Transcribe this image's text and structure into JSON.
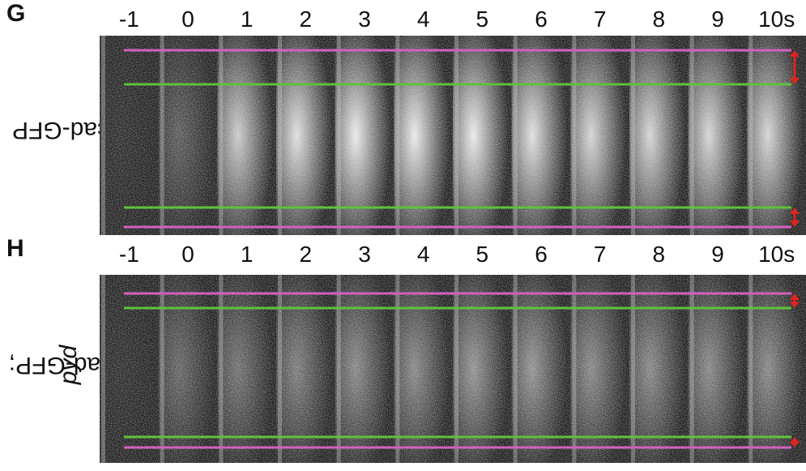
{
  "panels": [
    {
      "letter": "G",
      "ylabel": "Ecad-GFP",
      "ylabel_italic": "",
      "times": [
        "-1",
        "0",
        "1",
        "2",
        "3",
        "4",
        "5",
        "6",
        "7",
        "8",
        "9",
        "10s"
      ],
      "blob_intensity": [
        0.05,
        0.25,
        0.75,
        0.85,
        0.9,
        0.9,
        0.9,
        0.85,
        0.8,
        0.8,
        0.8,
        0.8
      ]
    },
    {
      "letter": "H",
      "ylabel": "Ecad-GFP; ",
      "ylabel_italic": "pyd",
      "times": [
        "-1",
        "0",
        "1",
        "2",
        "3",
        "4",
        "5",
        "6",
        "7",
        "8",
        "9",
        "10s"
      ],
      "blob_intensity": [
        0.05,
        0.3,
        0.35,
        0.4,
        0.45,
        0.45,
        0.5,
        0.5,
        0.45,
        0.45,
        0.45,
        0.45
      ]
    }
  ],
  "colors": {
    "magenta_line": "#d65fbf",
    "green_line": "#5ec23a",
    "arrow": "#e0241f"
  }
}
